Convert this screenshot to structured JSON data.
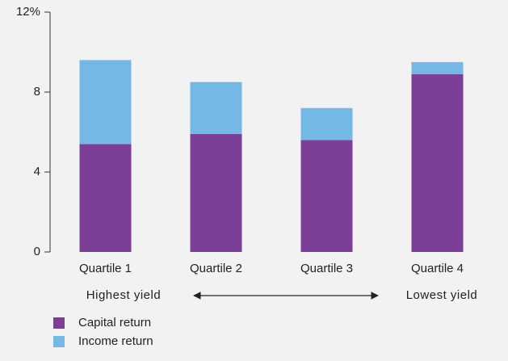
{
  "chart_data": {
    "type": "stacked_bar",
    "categories": [
      "Quartile 1",
      "Quartile 2",
      "Quartile 3",
      "Quartile 4"
    ],
    "series": [
      {
        "name": "Capital return",
        "color": "#7b3f98",
        "values": [
          5.4,
          5.9,
          5.6,
          8.9
        ]
      },
      {
        "name": "Income return",
        "color": "#74b8e6",
        "values": [
          4.2,
          2.6,
          1.6,
          0.6
        ]
      }
    ],
    "ylim": [
      0,
      12
    ],
    "yticks": [
      0,
      4,
      8,
      {
        "value": 12,
        "label": "12%"
      }
    ],
    "grid": false,
    "legend": "bottom-left",
    "annotations": [
      "Highest yield",
      "Lowest yield"
    ]
  }
}
